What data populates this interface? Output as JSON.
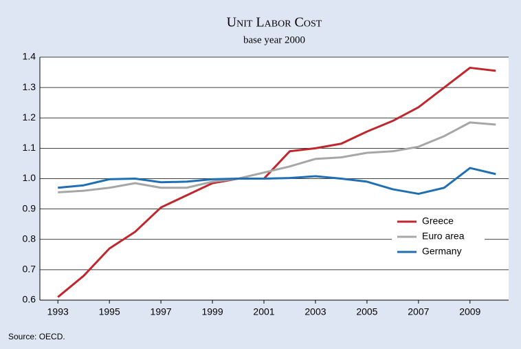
{
  "chart_data": {
    "type": "line",
    "title": "Unit Labor Cost",
    "subtitle": "base year 2000",
    "source": "Source: OECD.",
    "x": [
      1993,
      1994,
      1995,
      1996,
      1997,
      1998,
      1999,
      2000,
      2001,
      2002,
      2003,
      2004,
      2005,
      2006,
      2007,
      2008,
      2009,
      2010
    ],
    "series": [
      {
        "name": "Greece",
        "color": "#c0272d",
        "values": [
          0.61,
          0.68,
          0.77,
          0.825,
          0.905,
          0.945,
          0.985,
          1.0,
          1.0,
          1.09,
          1.1,
          1.115,
          1.155,
          1.19,
          1.235,
          1.3,
          1.365,
          1.355
        ]
      },
      {
        "name": "Euro area",
        "color": "#a6a6a6",
        "values": [
          0.955,
          0.96,
          0.97,
          0.985,
          0.97,
          0.97,
          0.99,
          1.0,
          1.02,
          1.04,
          1.065,
          1.07,
          1.085,
          1.09,
          1.105,
          1.14,
          1.185,
          1.178
        ]
      },
      {
        "name": "Germany",
        "color": "#1f6fb2",
        "values": [
          0.97,
          0.978,
          0.998,
          1.0,
          0.988,
          0.99,
          0.998,
          1.0,
          1.0,
          1.002,
          1.008,
          1.0,
          0.99,
          0.965,
          0.95,
          0.97,
          1.035,
          1.015
        ]
      }
    ],
    "xlim": [
      1992.3,
      2010.5
    ],
    "xticks": [
      1993,
      1995,
      1997,
      1999,
      2001,
      2003,
      2005,
      2007,
      2009
    ],
    "ylim": [
      0.6,
      1.4
    ],
    "yticks": [
      {
        "value": 0.6,
        "label": "0.6"
      },
      {
        "value": 0.7,
        "label": "0.7"
      },
      {
        "value": 0.8,
        "label": "0.8"
      },
      {
        "value": 0.9,
        "label": "0.9"
      },
      {
        "value": 1.0,
        "label": "1.0"
      },
      {
        "value": 1.1,
        "label": "1.1"
      },
      {
        "value": 1.2,
        "label": "1.2"
      },
      {
        "value": 1.3,
        "label": "1.3"
      },
      {
        "value": 1.4,
        "label": "1.4"
      }
    ],
    "grid": true,
    "legend": "lower right"
  }
}
